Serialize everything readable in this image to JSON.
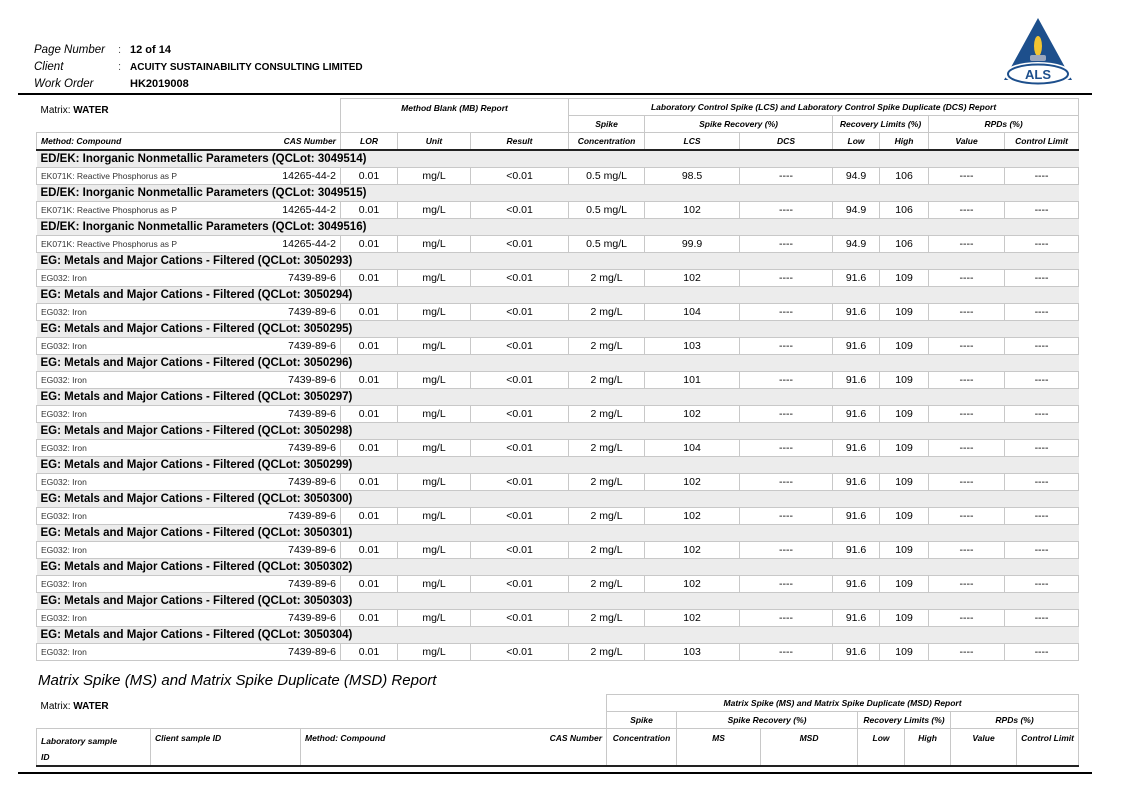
{
  "header": {
    "page_number_label": "Page Number",
    "page_number": "12 of 14",
    "client_label": "Client",
    "client": "ACUITY SUSTAINABILITY CONSULTING LIMITED",
    "work_order_label": "Work Order",
    "work_order": "HK2019008",
    "colon": ":",
    "logo_text": "ALS",
    "logo_colors": {
      "triangle": "#1d4f8c",
      "flame": "#f2c431",
      "base": "#9aa6bd"
    }
  },
  "table1": {
    "matrix_label": "Matrix: ",
    "matrix_value": "WATER",
    "mb_title": "Method Blank (MB) Report",
    "lcs_title": "Laboratory Control Spike (LCS) and Laboratory Control Spike Duplicate (DCS) Report",
    "headers": {
      "spike": "Spike",
      "spike_recovery": "Spike Recovery (%)",
      "recovery_limits": "Recovery Limits (%)",
      "rpds": "RPDs (%)",
      "method": "Method: Compound",
      "cas": "CAS Number",
      "lor": "LOR",
      "unit": "Unit",
      "result": "Result",
      "concentration": "Concentration",
      "lcs": "LCS",
      "dcs": "DCS",
      "low": "Low",
      "high": "High",
      "value": "Value",
      "control_limit": "Control Limit"
    },
    "groups": [
      {
        "title": "ED/EK: Inorganic Nonmetallic Parameters  (QCLot: 3049514)",
        "row": [
          "EK071K: Reactive Phosphorus as P",
          "14265-44-2",
          "0.01",
          "mg/L",
          "<0.01",
          "0.5 mg/L",
          "98.5",
          "----",
          "94.9",
          "106",
          "----",
          "----"
        ]
      },
      {
        "title": "ED/EK: Inorganic Nonmetallic Parameters  (QCLot: 3049515)",
        "row": [
          "EK071K: Reactive Phosphorus as P",
          "14265-44-2",
          "0.01",
          "mg/L",
          "<0.01",
          "0.5 mg/L",
          "102",
          "----",
          "94.9",
          "106",
          "----",
          "----"
        ]
      },
      {
        "title": "ED/EK: Inorganic Nonmetallic Parameters  (QCLot: 3049516)",
        "row": [
          "EK071K: Reactive Phosphorus as P",
          "14265-44-2",
          "0.01",
          "mg/L",
          "<0.01",
          "0.5 mg/L",
          "99.9",
          "----",
          "94.9",
          "106",
          "----",
          "----"
        ]
      },
      {
        "title": "EG: Metals and Major Cations - Filtered  (QCLot: 3050293)",
        "row": [
          "EG032: Iron",
          "7439-89-6",
          "0.01",
          "mg/L",
          "<0.01",
          "2 mg/L",
          "102",
          "----",
          "91.6",
          "109",
          "----",
          "----"
        ]
      },
      {
        "title": "EG: Metals and Major Cations - Filtered  (QCLot: 3050294)",
        "row": [
          "EG032: Iron",
          "7439-89-6",
          "0.01",
          "mg/L",
          "<0.01",
          "2 mg/L",
          "104",
          "----",
          "91.6",
          "109",
          "----",
          "----"
        ]
      },
      {
        "title": "EG: Metals and Major Cations - Filtered  (QCLot: 3050295)",
        "row": [
          "EG032: Iron",
          "7439-89-6",
          "0.01",
          "mg/L",
          "<0.01",
          "2 mg/L",
          "103",
          "----",
          "91.6",
          "109",
          "----",
          "----"
        ]
      },
      {
        "title": "EG: Metals and Major Cations - Filtered  (QCLot: 3050296)",
        "row": [
          "EG032: Iron",
          "7439-89-6",
          "0.01",
          "mg/L",
          "<0.01",
          "2 mg/L",
          "101",
          "----",
          "91.6",
          "109",
          "----",
          "----"
        ]
      },
      {
        "title": "EG: Metals and Major Cations - Filtered  (QCLot: 3050297)",
        "row": [
          "EG032: Iron",
          "7439-89-6",
          "0.01",
          "mg/L",
          "<0.01",
          "2 mg/L",
          "102",
          "----",
          "91.6",
          "109",
          "----",
          "----"
        ]
      },
      {
        "title": "EG: Metals and Major Cations - Filtered  (QCLot: 3050298)",
        "row": [
          "EG032: Iron",
          "7439-89-6",
          "0.01",
          "mg/L",
          "<0.01",
          "2 mg/L",
          "104",
          "----",
          "91.6",
          "109",
          "----",
          "----"
        ]
      },
      {
        "title": "EG: Metals and Major Cations - Filtered  (QCLot: 3050299)",
        "row": [
          "EG032: Iron",
          "7439-89-6",
          "0.01",
          "mg/L",
          "<0.01",
          "2 mg/L",
          "102",
          "----",
          "91.6",
          "109",
          "----",
          "----"
        ]
      },
      {
        "title": "EG: Metals and Major Cations - Filtered  (QCLot: 3050300)",
        "row": [
          "EG032: Iron",
          "7439-89-6",
          "0.01",
          "mg/L",
          "<0.01",
          "2 mg/L",
          "102",
          "----",
          "91.6",
          "109",
          "----",
          "----"
        ]
      },
      {
        "title": "EG: Metals and Major Cations - Filtered  (QCLot: 3050301)",
        "row": [
          "EG032: Iron",
          "7439-89-6",
          "0.01",
          "mg/L",
          "<0.01",
          "2 mg/L",
          "102",
          "----",
          "91.6",
          "109",
          "----",
          "----"
        ]
      },
      {
        "title": "EG: Metals and Major Cations - Filtered  (QCLot: 3050302)",
        "row": [
          "EG032: Iron",
          "7439-89-6",
          "0.01",
          "mg/L",
          "<0.01",
          "2 mg/L",
          "102",
          "----",
          "91.6",
          "109",
          "----",
          "----"
        ]
      },
      {
        "title": "EG: Metals and Major Cations - Filtered  (QCLot: 3050303)",
        "row": [
          "EG032: Iron",
          "7439-89-6",
          "0.01",
          "mg/L",
          "<0.01",
          "2 mg/L",
          "102",
          "----",
          "91.6",
          "109",
          "----",
          "----"
        ]
      },
      {
        "title": "EG: Metals and Major Cations - Filtered  (QCLot: 3050304)",
        "row": [
          "EG032: Iron",
          "7439-89-6",
          "0.01",
          "mg/L",
          "<0.01",
          "2 mg/L",
          "103",
          "----",
          "91.6",
          "109",
          "----",
          "----"
        ]
      }
    ]
  },
  "section2": {
    "title": "Matrix Spike (MS) and Matrix Spike Duplicate (MSD) Report",
    "matrix_label": "Matrix: ",
    "matrix_value": "WATER",
    "table_title": "Matrix Spike (MS) and Matrix Spike Duplicate (MSD) Report",
    "headers": {
      "spike": "Spike",
      "spike_recovery": "Spike Recovery (%)",
      "recovery_limits": "Recovery Limits (%)",
      "rpds": "RPDs (%)",
      "lab_sample": "Laboratory sample",
      "lab_sample_id": "ID",
      "client_sample": "Client sample ID",
      "method": "Method: Compound",
      "cas": "CAS Number",
      "concentration": "Concentration",
      "ms": "MS",
      "msd": "MSD",
      "low": "Low",
      "high": "High",
      "value": "Value",
      "control_limit": "Control Limit"
    }
  }
}
